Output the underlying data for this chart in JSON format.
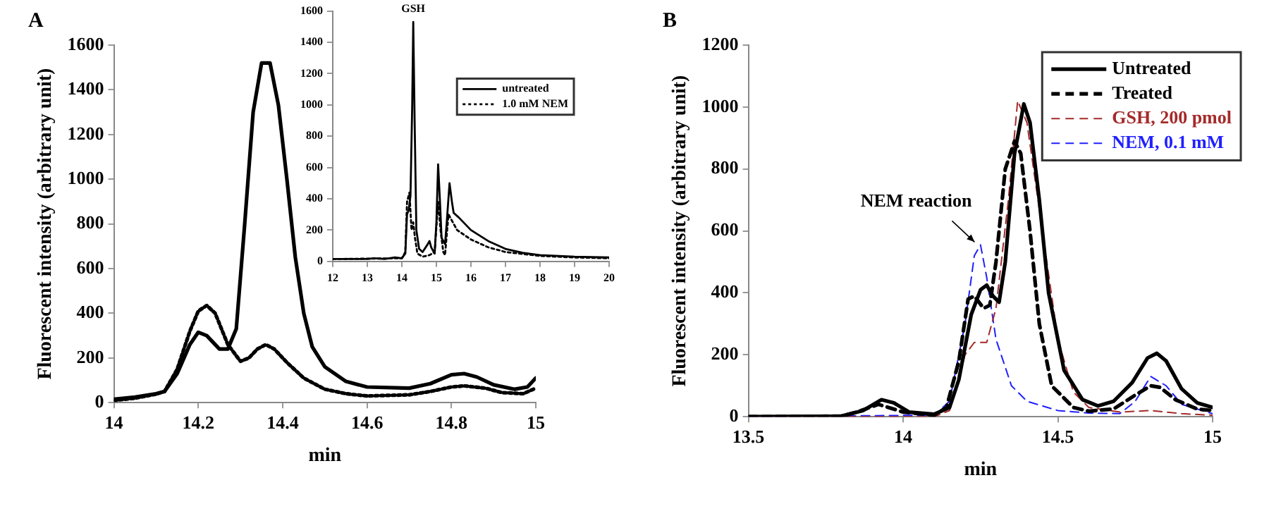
{
  "chart_data": [
    {
      "type": "line",
      "title": "A",
      "xlabel": "min",
      "ylabel": "Fluorescent intensity (arbitrary unit)",
      "xlim": [
        14,
        15
      ],
      "xticks": [
        14,
        14.2,
        14.4,
        14.6,
        14.8,
        15
      ],
      "ylim": [
        0,
        1600
      ],
      "yticks": [
        0,
        200,
        400,
        600,
        800,
        1000,
        1200,
        1400,
        1600
      ],
      "grid": false,
      "legend": false,
      "marker": "none",
      "series": [
        {
          "color": "#000000",
          "line_style": "solid",
          "x": [
            14,
            14.05,
            14.1,
            14.12,
            14.15,
            14.18,
            14.2,
            14.22,
            14.25,
            14.27,
            14.29,
            14.31,
            14.33,
            14.35,
            14.37,
            14.39,
            14.41,
            14.43,
            14.45,
            14.47,
            14.5,
            14.55,
            14.6,
            14.7,
            14.75,
            14.8,
            14.83,
            14.86,
            14.9,
            14.95,
            14.98,
            15
          ],
          "values": [
            15,
            25,
            40,
            50,
            130,
            260,
            315,
            300,
            240,
            240,
            330,
            800,
            1300,
            1520,
            1520,
            1330,
            1000,
            650,
            400,
            250,
            160,
            95,
            70,
            65,
            85,
            125,
            130,
            115,
            80,
            60,
            70,
            110
          ]
        },
        {
          "color": "#000000",
          "line_style": "dotted",
          "x": [
            14,
            14.05,
            14.1,
            14.12,
            14.15,
            14.18,
            14.2,
            14.22,
            14.24,
            14.27,
            14.3,
            14.32,
            14.34,
            14.36,
            14.38,
            14.41,
            14.45,
            14.5,
            14.55,
            14.6,
            14.7,
            14.75,
            14.8,
            14.83,
            14.88,
            14.92,
            14.97,
            15
          ],
          "values": [
            10,
            20,
            38,
            50,
            150,
            320,
            410,
            435,
            400,
            260,
            185,
            200,
            240,
            260,
            240,
            180,
            110,
            60,
            40,
            30,
            35,
            50,
            70,
            75,
            65,
            45,
            40,
            65
          ]
        }
      ]
    },
    {
      "type": "line",
      "xlim": [
        12,
        20
      ],
      "xticks": [
        12,
        13,
        14,
        15,
        16,
        17,
        18,
        19,
        20
      ],
      "ylim": [
        0,
        1600
      ],
      "yticks": [
        0,
        200,
        400,
        600,
        800,
        1000,
        1200,
        1400,
        1600
      ],
      "grid": false,
      "legend": "top right",
      "marker": "none",
      "annotations": [
        {
          "text": "GSH",
          "x": 14.33,
          "y": 1530
        }
      ],
      "series": [
        {
          "name": "untreated",
          "color": "#000000",
          "line_style": "solid",
          "x": [
            12,
            13,
            13.2,
            13.5,
            13.8,
            14,
            14.1,
            14.15,
            14.2,
            14.25,
            14.3,
            14.33,
            14.37,
            14.42,
            14.5,
            14.6,
            14.75,
            14.8,
            14.85,
            14.95,
            15,
            15.05,
            15.1,
            15.15,
            15.25,
            15.3,
            15.38,
            15.45,
            15.5,
            15.65,
            16,
            16.5,
            17,
            17.5,
            18,
            19,
            20
          ],
          "values": [
            15,
            15,
            20,
            15,
            25,
            20,
            50,
            300,
            330,
            420,
            1000,
            1530,
            900,
            200,
            80,
            60,
            110,
            130,
            90,
            50,
            250,
            620,
            400,
            150,
            110,
            250,
            500,
            380,
            310,
            280,
            200,
            130,
            80,
            55,
            40,
            30,
            25
          ]
        },
        {
          "name": "1.0 mM NEM",
          "color": "#000000",
          "line_style": "dotted",
          "x": [
            12,
            14,
            14.1,
            14.15,
            14.22,
            14.28,
            14.33,
            14.38,
            14.45,
            14.6,
            14.8,
            14.95,
            15.05,
            15.12,
            15.2,
            15.25,
            15.35,
            15.45,
            15.6,
            16,
            16.5,
            17,
            18,
            19,
            20
          ],
          "values": [
            15,
            20,
            60,
            380,
            440,
            200,
            250,
            150,
            50,
            30,
            40,
            60,
            380,
            200,
            60,
            40,
            300,
            260,
            200,
            140,
            90,
            60,
            35,
            25,
            20
          ]
        }
      ]
    },
    {
      "type": "line",
      "title": "B",
      "xlabel": "min",
      "ylabel": "Fluorescent intensity (arbitrary unit)",
      "xlim": [
        13.5,
        15
      ],
      "xticks": [
        13.5,
        14,
        14.5,
        15
      ],
      "ylim": [
        0,
        1200
      ],
      "yticks": [
        0,
        200,
        400,
        600,
        800,
        1000,
        1200
      ],
      "grid": false,
      "legend": "top right",
      "marker": "none",
      "annotations": [
        {
          "text": "NEM reaction",
          "x": 14.24,
          "y": 555
        }
      ],
      "series": [
        {
          "name": "Untreated",
          "color": "#000000",
          "line_style": "solid",
          "x": [
            13.5,
            13.8,
            13.87,
            13.93,
            13.97,
            14.02,
            14.1,
            14.15,
            14.18,
            14.22,
            14.25,
            14.27,
            14.29,
            14.31,
            14.33,
            14.36,
            14.39,
            14.41,
            14.44,
            14.47,
            14.52,
            14.58,
            14.63,
            14.68,
            14.74,
            14.79,
            14.82,
            14.85,
            14.9,
            14.95,
            15
          ],
          "values": [
            0,
            2,
            20,
            55,
            45,
            15,
            8,
            30,
            120,
            330,
            410,
            425,
            390,
            370,
            500,
            850,
            1010,
            950,
            700,
            400,
            150,
            55,
            35,
            50,
            110,
            190,
            205,
            180,
            90,
            45,
            30
          ]
        },
        {
          "name": "Treated",
          "color": "#000000",
          "line_style": "dashed",
          "x": [
            13.5,
            13.8,
            13.85,
            13.92,
            14,
            14.1,
            14.14,
            14.18,
            14.21,
            14.23,
            14.26,
            14.28,
            14.3,
            14.33,
            14.36,
            14.38,
            14.41,
            14.44,
            14.48,
            14.55,
            14.6,
            14.68,
            14.75,
            14.8,
            14.83,
            14.88,
            14.95,
            15
          ],
          "values": [
            0,
            2,
            15,
            40,
            15,
            5,
            30,
            180,
            380,
            390,
            350,
            360,
            500,
            800,
            890,
            850,
            600,
            300,
            100,
            30,
            18,
            25,
            70,
            100,
            95,
            55,
            25,
            20
          ]
        },
        {
          "name": "GSH, 200 pmol",
          "color": "#a52a2a",
          "line_style": "dashed",
          "x": [
            13.5,
            14.1,
            14.15,
            14.2,
            14.23,
            14.27,
            14.3,
            14.34,
            14.37,
            14.4,
            14.45,
            14.5,
            14.55,
            14.6,
            14.7,
            14.8,
            14.9,
            15
          ],
          "values": [
            0,
            0,
            20,
            200,
            240,
            240,
            350,
            700,
            1020,
            950,
            600,
            250,
            80,
            30,
            15,
            20,
            10,
            5
          ]
        },
        {
          "name": "NEM, 0.1 mM",
          "color": "#2020ff",
          "line_style": "dashed",
          "x": [
            13.5,
            14.1,
            14.15,
            14.2,
            14.23,
            14.25,
            14.27,
            14.3,
            14.35,
            14.4,
            14.5,
            14.6,
            14.7,
            14.75,
            14.8,
            14.85,
            14.9,
            15
          ],
          "values": [
            0,
            5,
            50,
            300,
            520,
            555,
            450,
            250,
            100,
            50,
            20,
            12,
            10,
            50,
            130,
            100,
            40,
            10
          ]
        }
      ]
    }
  ]
}
